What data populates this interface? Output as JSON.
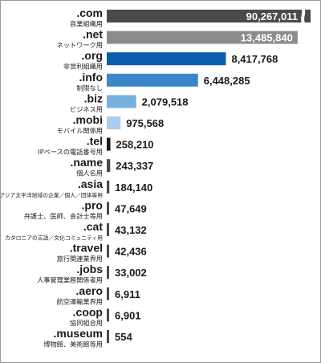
{
  "chart_data": {
    "type": "bar",
    "orientation": "horizontal",
    "categories": [
      ".com",
      ".net",
      ".org",
      ".info",
      ".biz",
      ".mobi",
      ".tel",
      ".name",
      ".asia",
      ".pro",
      ".cat",
      ".travel",
      ".jobs",
      ".aero",
      ".coop",
      ".museum"
    ],
    "descriptions": [
      "商業組織用",
      "ネットワーク用",
      "非営利組織用",
      "制限なし",
      "ビジネス用",
      "モバイル関係用",
      "IPベースの電話番号用",
      "個人名用",
      "アジア太平洋地域の企業／個人／団体等用",
      "弁護士、医師、会計士等用",
      "カタロニアの言語／文化コミュニティ用",
      "旅行関連業界用",
      "人事管理業務関係者用",
      "航空運輸業界用",
      "協同組合用",
      "博物館、美術館等用"
    ],
    "values": [
      90267011,
      13485840,
      8417768,
      6448285,
      2079518,
      975568,
      258210,
      243337,
      184140,
      47649,
      43132,
      42436,
      33002,
      6911,
      6901,
      554
    ],
    "value_labels": [
      "90,267,011",
      "13,485,840",
      "8,417,768",
      "6,448,285",
      "2,079,518",
      "975,568",
      "258,210",
      "243,337",
      "184,140",
      "47,649",
      "43,132",
      "42,436",
      "33,002",
      "6,911",
      "6,901",
      "554"
    ],
    "bar_colors": [
      "#4a4a4a",
      "#8c8c8c",
      "#0a5cad",
      "#3a86c8",
      "#78b0dd",
      "#a9cdea",
      "#1a1a1a",
      "#4a4a4a",
      "#4a4a4a",
      "#4a4a4a",
      "#4a4a4a",
      "#4a4a4a",
      "#4a4a4a",
      "#4a4a4a",
      "#4a4a4a",
      "#4a4a4a"
    ],
    "axis_break_on_first_bar": true,
    "title": "",
    "xlabel": "",
    "ylabel": ""
  }
}
